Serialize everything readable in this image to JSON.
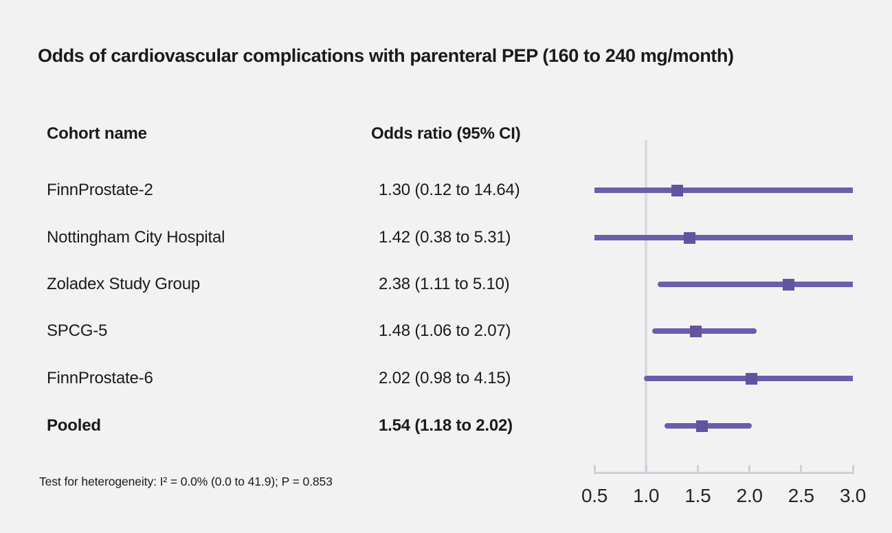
{
  "title": "Odds of cardiovascular complications with parenteral PEP (160 to 240 mg/month)",
  "table": {
    "cohort_header": "Cohort name",
    "or_header": "Odds ratio (95% CI)"
  },
  "footnote": "Test for heterogeneity: I² = 0.0% (0.0 to 41.9); P = 0.853",
  "colors": {
    "background": "#f2f2f2",
    "text": "#1a1a1a",
    "ci_line": "#6c5dac",
    "marker": "#63539f",
    "reference_line": "#d7dbe4",
    "axis": "#ccd1d9",
    "axis_label": "#252525"
  },
  "chart_data": {
    "type": "forest",
    "title": "Odds of cardiovascular complications with parenteral PEP (160 to 240 mg/month)",
    "columns": [
      "Cohort name",
      "Odds ratio (95% CI)"
    ],
    "rows": [
      {
        "cohort": "FinnProstate-2",
        "or_label": "1.30 (0.12 to 14.64)",
        "or": 1.3,
        "ci_low": 0.12,
        "ci_high": 14.64,
        "pooled": false
      },
      {
        "cohort": "Nottingham City Hospital",
        "or_label": "1.42 (0.38 to 5.31)",
        "or": 1.42,
        "ci_low": 0.38,
        "ci_high": 5.31,
        "pooled": false
      },
      {
        "cohort": "Zoladex Study Group",
        "or_label": "2.38 (1.11 to 5.10)",
        "or": 2.38,
        "ci_low": 1.11,
        "ci_high": 5.1,
        "pooled": false
      },
      {
        "cohort": "SPCG-5",
        "or_label": "1.48 (1.06 to 2.07)",
        "or": 1.48,
        "ci_low": 1.06,
        "ci_high": 2.07,
        "pooled": false
      },
      {
        "cohort": "FinnProstate-6",
        "or_label": "2.02 (0.98 to 4.15)",
        "or": 2.02,
        "ci_low": 0.98,
        "ci_high": 4.15,
        "pooled": false
      },
      {
        "cohort": "Pooled",
        "or_label": "1.54 (1.18 to 2.02)",
        "or": 1.54,
        "ci_low": 1.18,
        "ci_high": 2.02,
        "pooled": true
      }
    ],
    "xlim": [
      0.5,
      3.0
    ],
    "x_ticks": [
      0.5,
      1.0,
      1.5,
      2.0,
      2.5,
      3.0
    ],
    "x_tick_labels": [
      "0.5",
      "1.0",
      "1.5",
      "2.0",
      "2.5",
      "3.0"
    ],
    "reference_line": 1.0,
    "heterogeneity_note": "Test for heterogeneity: I² = 0.0% (0.0 to 41.9); P = 0.853",
    "legend_position": "none",
    "grid": false
  }
}
